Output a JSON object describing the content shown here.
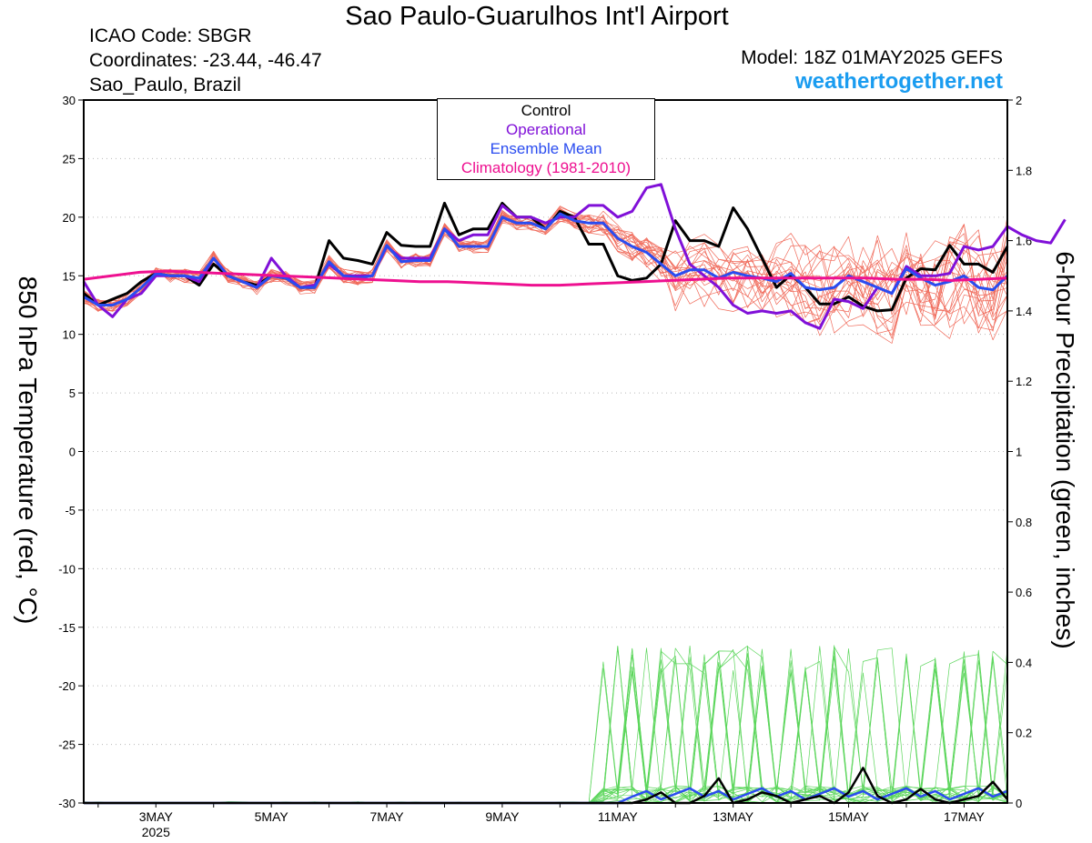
{
  "header": {
    "title": "Sao Paulo-Guarulhos Int'l Airport",
    "icao": "ICAO Code: SBGR",
    "coordinates": "Coordinates: -23.44, -46.47",
    "location": "Sao_Paulo, Brazil",
    "model": "Model: 18Z 01MAY2025 GEFS",
    "site": "weathertogether.net"
  },
  "colors": {
    "members": "#f06a5a",
    "precip_members": "#5cd65c",
    "control": "#000000",
    "operational": "#8010d8",
    "ensemble_mean": "#2a4cf0",
    "climatology": "#ee1090",
    "site": "#1a9cf0"
  },
  "chart_data": {
    "type": "line",
    "title": "Sao Paulo-Guarulhos Int'l Airport",
    "ylabel": "850 hPa Temperature (red, °C)",
    "y2label": "6-hour Precipitation (green, inches)",
    "ylim": [
      -30,
      30
    ],
    "y2lim": [
      0,
      2
    ],
    "yticks": [
      "30",
      "25",
      "20",
      "15",
      "10",
      "5",
      "0",
      "-5",
      "-10",
      "-15",
      "-20",
      "-25",
      "-30"
    ],
    "y2ticks": [
      "2",
      "1.8",
      "1.6",
      "1.4",
      "1.2",
      "1",
      "0.8",
      "0.6",
      "0.4",
      "0.2",
      "0"
    ],
    "xticks": [
      {
        "label": "3MAY",
        "sub": "2025",
        "day": 3
      },
      {
        "label": "5MAY",
        "sub": "",
        "day": 5
      },
      {
        "label": "7MAY",
        "sub": "",
        "day": 7
      },
      {
        "label": "9MAY",
        "sub": "",
        "day": 9
      },
      {
        "label": "11MAY",
        "sub": "",
        "day": 11
      },
      {
        "label": "13MAY",
        "sub": "",
        "day": 13
      },
      {
        "label": "15MAY",
        "sub": "",
        "day": 15
      },
      {
        "label": "17MAY",
        "sub": "",
        "day": 17
      }
    ],
    "xlim_days": [
      1.75,
      17.75
    ],
    "step_hours": 6,
    "grid": true,
    "legend": {
      "placement": "top-center",
      "entries": [
        {
          "name": "Control",
          "color": "#000000"
        },
        {
          "name": "Operational",
          "color": "#8010d8"
        },
        {
          "name": "Ensemble Mean",
          "color": "#2a4cf0"
        },
        {
          "name": "Climatology (1981-2010)",
          "color": "#ee1090"
        }
      ]
    },
    "series": [
      {
        "name": "Control",
        "axis": "temp",
        "color": "#000000",
        "values": [
          13.5,
          12.5,
          13,
          13.5,
          14.5,
          15.2,
          15,
          15,
          14.2,
          16,
          15,
          14.5,
          14.2,
          15,
          14.8,
          14,
          14,
          18,
          16.5,
          16.3,
          16,
          18.7,
          17.6,
          17.5,
          17.5,
          21.2,
          18.5,
          19,
          19,
          21.2,
          20,
          20,
          19,
          20.5,
          20,
          17.7,
          17.7,
          15,
          14.6,
          14.8,
          16,
          19.7,
          18,
          18,
          17.5,
          20.8,
          19,
          16.5,
          14,
          15.1,
          14,
          12.6,
          12.6,
          13.2,
          12.4,
          12,
          12.1,
          14.8,
          15.6,
          15.5,
          17.6,
          16,
          16,
          15.3,
          17.5
        ]
      },
      {
        "name": "Operational",
        "axis": "temp",
        "color": "#8010d8",
        "values": [
          14.5,
          12.5,
          11.5,
          13,
          13.5,
          15,
          15,
          15,
          14.5,
          16.5,
          15,
          14.5,
          14,
          16.5,
          15,
          14,
          14.2,
          16,
          15,
          15,
          15,
          17.5,
          16.5,
          16.5,
          16.5,
          19,
          18,
          18.5,
          18.5,
          21,
          20,
          20,
          19.5,
          20,
          20,
          21,
          21,
          20,
          20.5,
          22.5,
          22.8,
          19,
          16,
          15,
          14,
          12.5,
          11.8,
          12,
          11.8,
          12,
          11,
          10.5,
          13,
          12.8,
          12.2,
          14,
          13.5,
          15.8,
          15,
          15,
          15.2,
          17.5,
          17.2,
          17.5,
          19.2,
          18.5,
          18,
          17.8,
          19.8
        ]
      },
      {
        "name": "Ensemble Mean",
        "axis": "temp",
        "color": "#2a4cf0",
        "values": [
          13.2,
          12.5,
          12.5,
          13,
          14,
          15.2,
          15,
          15,
          14.8,
          16.5,
          15,
          14.5,
          14,
          15,
          14.8,
          14,
          14,
          16.2,
          15,
          14.8,
          15,
          17.6,
          16.2,
          16.3,
          16.3,
          19,
          17.5,
          17.5,
          17.5,
          20,
          19.5,
          19.5,
          19,
          20.3,
          19.7,
          19.5,
          19.5,
          18.2,
          17.5,
          17,
          16,
          15,
          15.5,
          15.5,
          14.8,
          15.3,
          15,
          14.8,
          14.5,
          15.2,
          14,
          13.8,
          14,
          15,
          14.5,
          14,
          13.5,
          15.6,
          14.8,
          14.2,
          14.5,
          15,
          14,
          13.8,
          15
        ]
      },
      {
        "name": "Climatology (1981-2010)",
        "axis": "temp",
        "color": "#ee1090",
        "values": [
          14.7,
          15,
          15.3,
          15.4,
          15.3,
          15.2,
          15.1,
          15,
          14.9,
          14.8,
          14.7,
          14.6,
          14.5,
          14.5,
          14.4,
          14.3,
          14.2,
          14.2,
          14.3,
          14.4,
          14.5,
          14.6,
          14.7,
          14.8,
          14.8,
          14.8,
          14.8,
          14.8,
          14.8,
          14.7,
          14.7,
          14.6,
          14.7,
          14.8
        ]
      }
    ]
  }
}
